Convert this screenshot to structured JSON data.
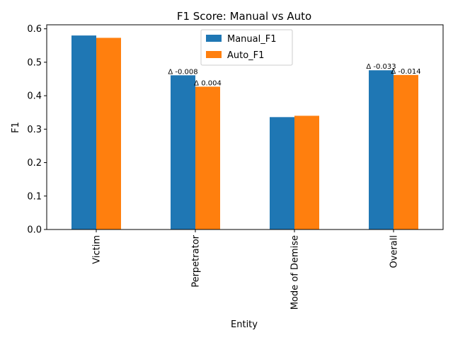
{
  "chart_data": {
    "type": "bar",
    "title": "F1 Score: Manual vs Auto",
    "xlabel": "Entity",
    "ylabel": "F1",
    "categories": [
      "Victim",
      "Perpetrator",
      "Mode of Demise",
      "Overall"
    ],
    "series": [
      {
        "name": "Manual_F1",
        "color": "#1f77b4",
        "values": [
          0.58,
          0.461,
          0.336,
          0.476
        ]
      },
      {
        "name": "Auto_F1",
        "color": "#ff7f0e",
        "values": [
          0.573,
          0.427,
          0.34,
          0.462
        ]
      }
    ],
    "ylim": [
      0,
      0.612
    ],
    "yticks": [
      "0.0",
      "0.1",
      "0.2",
      "0.3",
      "0.4",
      "0.5",
      "0.6"
    ],
    "annotations": [
      {
        "category": "Perpetrator",
        "series": "Manual_F1",
        "text": "Δ -0.008"
      },
      {
        "category": "Perpetrator",
        "series": "Auto_F1",
        "text": "Δ 0.004"
      },
      {
        "category": "Overall",
        "series": "Manual_F1",
        "text": "Δ -0.033"
      },
      {
        "category": "Overall",
        "series": "Auto_F1",
        "text": "Δ -0.014"
      }
    ],
    "legend_position": "top-center",
    "grid": false
  }
}
